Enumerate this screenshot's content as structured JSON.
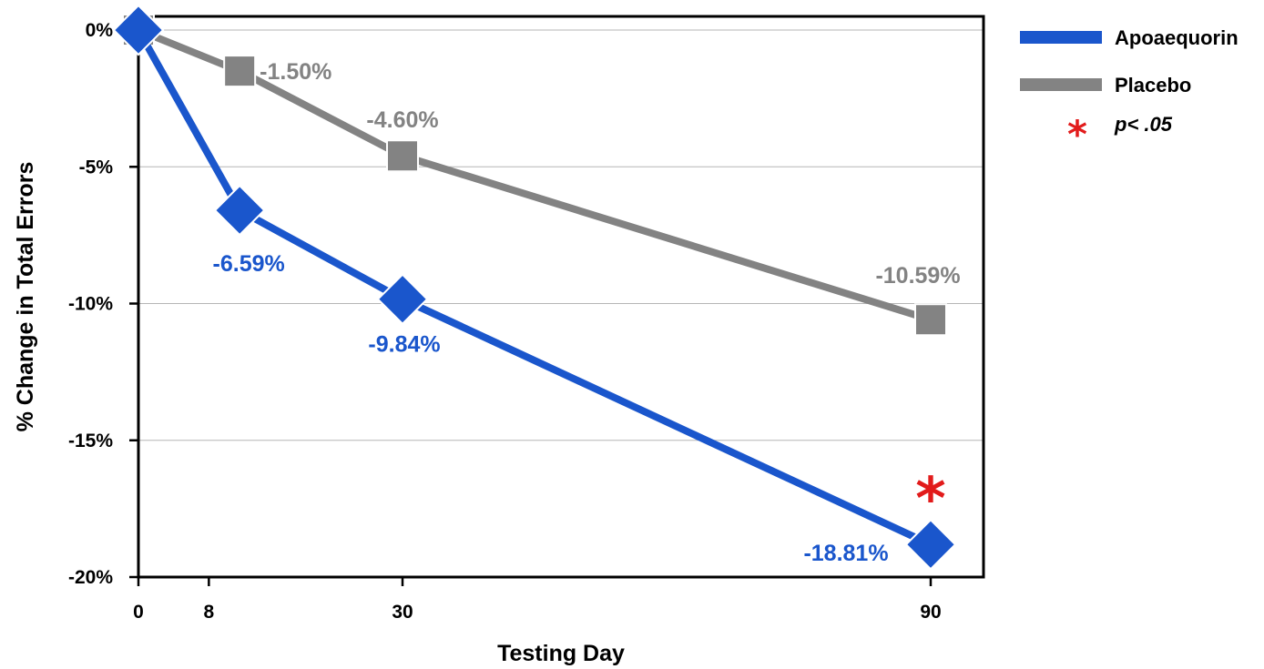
{
  "chart_data": {
    "type": "line",
    "xlabel": "Testing Day",
    "ylabel": "% Change in Total Errors",
    "x_ticks": [
      0,
      8,
      30,
      90
    ],
    "x_tick_labels": [
      "0",
      "8",
      "30",
      "90"
    ],
    "y_ticks": [
      0,
      -5,
      -10,
      -15,
      -20
    ],
    "y_tick_labels": [
      "0%",
      "-5%",
      "-10%",
      "-15%",
      "-20%"
    ],
    "xlim": [
      0,
      96
    ],
    "ylim": [
      -20,
      0.5
    ],
    "grid": "horizontal",
    "legend_position": "top-right",
    "series": [
      {
        "name": "Apoaequorin",
        "color": "#1a56cc",
        "marker": "diamond",
        "points": [
          {
            "x": 0,
            "y": 0,
            "label": ""
          },
          {
            "x": 11.5,
            "y": -6.59,
            "label": "-6.59%"
          },
          {
            "x": 30,
            "y": -9.84,
            "label": "-9.84%"
          },
          {
            "x": 90,
            "y": -18.81,
            "label": "-18.81%"
          }
        ]
      },
      {
        "name": "Placebo",
        "color": "#838383",
        "marker": "square",
        "points": [
          {
            "x": 0,
            "y": 0,
            "label": ""
          },
          {
            "x": 11.5,
            "y": -1.5,
            "label": "-1.50%"
          },
          {
            "x": 30,
            "y": -4.6,
            "label": "-4.60%"
          },
          {
            "x": 90,
            "y": -10.59,
            "label": "-10.59%"
          }
        ]
      }
    ],
    "annotations": [
      {
        "text": "*",
        "x": 90,
        "meaning": "significance marker",
        "color": "#e21b1b"
      }
    ],
    "legend": [
      {
        "label": "Apoaequorin",
        "color": "#1a56cc"
      },
      {
        "label": "Placebo",
        "color": "#838383"
      },
      {
        "label": "p< .05",
        "symbol": "*",
        "color": "#e21b1b"
      }
    ]
  }
}
